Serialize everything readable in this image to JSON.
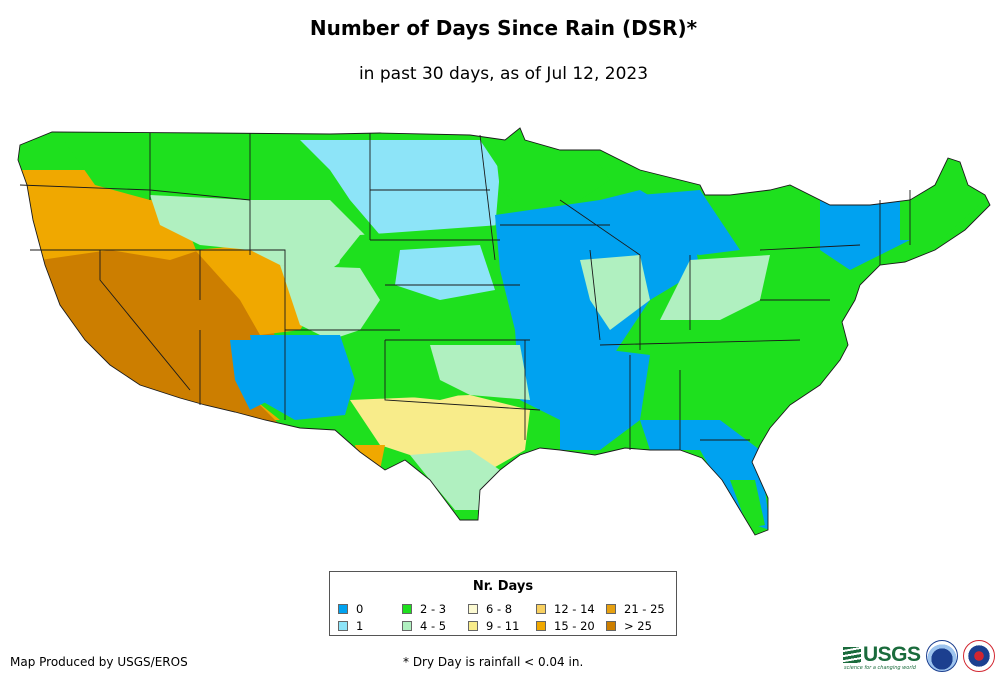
{
  "title": "Number of Days Since Rain (DSR)*",
  "subtitle": "in past 30 days, as of Jul 12, 2023",
  "legend": {
    "title": "Nr. Days",
    "items": [
      {
        "label": "0",
        "color": "#00a2f0"
      },
      {
        "label": "1",
        "color": "#8de4f8"
      },
      {
        "label": "2 - 3",
        "color": "#1ee01e"
      },
      {
        "label": "4 - 5",
        "color": "#b0f0c0"
      },
      {
        "label": "6 - 8",
        "color": "#fcfad2"
      },
      {
        "label": "9 - 11",
        "color": "#f8ec8a"
      },
      {
        "label": "12 - 14",
        "color": "#f8d060"
      },
      {
        "label": "15 - 20",
        "color": "#f0a800"
      },
      {
        "label": "21 - 25",
        "color": "#e6a010"
      },
      {
        "label": "> 25",
        "color": "#cc7e00"
      }
    ]
  },
  "credit": "Map Produced by USGS/EROS",
  "footnote": "* Dry Day is rainfall < 0.04 in.",
  "logos": {
    "usgs": "USGS",
    "usgs_tagline": "science for a changing world",
    "seals": [
      "noaa-seal",
      "nws-seal"
    ]
  }
}
